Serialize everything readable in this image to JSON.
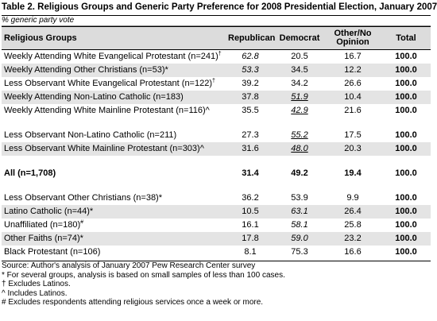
{
  "title": "Table 2. Religious Groups and Generic Party Preference for 2008 Presidential Election, January 2007",
  "subtitle": "% generic party vote",
  "header": {
    "label": "Religious Groups",
    "columns": [
      "Republican",
      "Democrat",
      "Other/No Opinion",
      "Total"
    ]
  },
  "groups": [
    [
      {
        "label": "Weekly Attending White Evangelical Protestant (n=241)",
        "note": "†",
        "values": [
          "62.8",
          "20.5",
          "16.7",
          "100.0"
        ],
        "italic": [
          0
        ]
      },
      {
        "label": "Weekly Attending Other Christians (n=53)*",
        "values": [
          "53.3",
          "34.5",
          "12.2",
          "100.0"
        ],
        "italic": [
          0
        ]
      },
      {
        "label": "Less Observant White Evangelical Protestant (n=122)",
        "note": "†",
        "values": [
          "39.2",
          "34.2",
          "26.6",
          "100.0"
        ]
      },
      {
        "label": "Weekly Attending Non-Latino Catholic (n=183)",
        "values": [
          "37.8",
          "51.9",
          "10.4",
          "100.0"
        ],
        "italic": [
          1
        ],
        "underline": [
          1
        ]
      },
      {
        "label": "Weekly Attending White Mainline Protestant (n=116)^",
        "values": [
          "35.5",
          "42.9",
          "21.6",
          "100.0"
        ],
        "italic": [
          1
        ],
        "underline": [
          1
        ]
      }
    ],
    [
      {
        "label": "Less Observant Non-Latino Catholic (n=211)",
        "values": [
          "27.3",
          "55.2",
          "17.5",
          "100.0"
        ],
        "italic": [
          1
        ],
        "underline": [
          1
        ]
      },
      {
        "label": "Less Observant White Mainline Protestant (n=303)^",
        "values": [
          "31.6",
          "48.0",
          "20.3",
          "100.0"
        ],
        "italic": [
          1
        ],
        "underline": [
          1
        ]
      }
    ],
    [
      {
        "label": "All (n=1,708)",
        "values": [
          "31.4",
          "49.2",
          "19.4",
          "100.0"
        ],
        "bold": true
      }
    ],
    [
      {
        "label": "Less Observant Other Christians (n=38)*",
        "values": [
          "36.2",
          "53.9",
          "9.9",
          "100.0"
        ]
      },
      {
        "label": "Latino Catholic (n=44)*",
        "values": [
          "10.5",
          "63.1",
          "26.4",
          "100.0"
        ],
        "italic": [
          1
        ]
      },
      {
        "label": "Unaffiliated (n=180)",
        "note": "#",
        "values": [
          "16.1",
          "58.1",
          "25.8",
          "100.0"
        ],
        "italic": [
          1
        ]
      },
      {
        "label": "Other Faiths (n=74)*",
        "values": [
          "17.8",
          "59.0",
          "23.2",
          "100.0"
        ],
        "italic": [
          1
        ]
      },
      {
        "label": "Black Protestant (n=106)",
        "values": [
          "8.1",
          "75.3",
          "16.6",
          "100.0"
        ]
      }
    ]
  ],
  "footnotes": [
    "Source: Author's analysis of January 2007 Pew Research Center survey",
    "* For several groups, analysis is based on small samples of less than 100 cases.",
    "† Excludes Latinos.",
    "^ Includes Latinos.",
    "# Excludes respondents attending religious services once a week or more."
  ]
}
